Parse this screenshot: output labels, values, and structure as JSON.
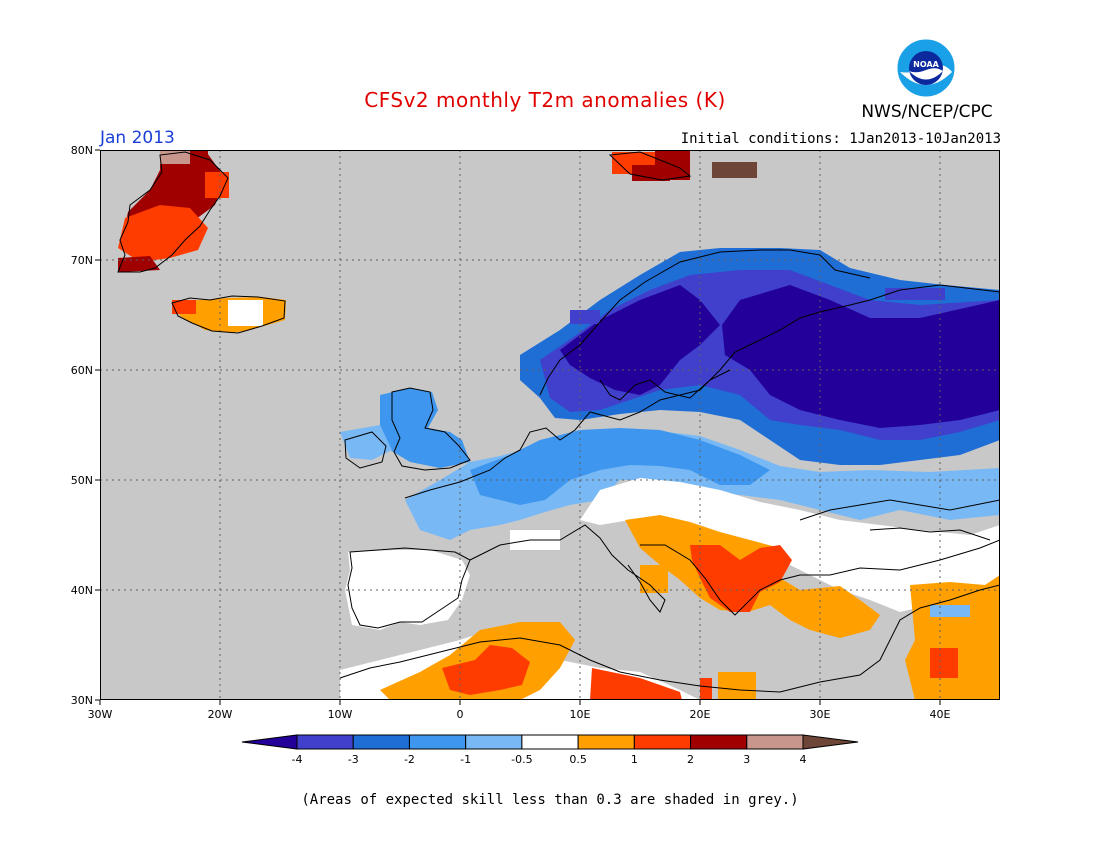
{
  "header": {
    "title": "CFSv2 monthly T2m anomalies (K)",
    "organization": "NWS/NCEP/CPC",
    "logo_text": "NOAA",
    "month": "Jan 2013",
    "initial_conditions": "Initial conditions: 1Jan2013-10Jan2013"
  },
  "map": {
    "projection": "lat-lon",
    "lon_range": [
      -30,
      45
    ],
    "lat_range": [
      30,
      80
    ],
    "lat_ticks": [
      "80N",
      "70N",
      "60N",
      "50N",
      "40N",
      "30N"
    ],
    "lon_ticks": [
      "30W",
      "20W",
      "10W",
      "0",
      "10E",
      "20E",
      "30E",
      "40E"
    ],
    "background_color": "#c8c8c8",
    "regions": [
      {
        "label": "Greenland",
        "category": "+2 to +3",
        "color": "#a00000"
      },
      {
        "label": "Iceland",
        "category": "+0.5 to +1",
        "color": "#ff9f00"
      },
      {
        "label": "Scandinavia / NW Russia",
        "category": "-3 to -4",
        "color": "#2a00a8"
      },
      {
        "label": "Central Europe",
        "category": "-1 to -2",
        "color": "#3e96ee"
      },
      {
        "label": "Balkans",
        "category": "+1 to +2",
        "color": "#ff3c00"
      },
      {
        "label": "North Africa",
        "category": "+0.5 to +1",
        "color": "#ff9f00"
      }
    ]
  },
  "colorbar": {
    "labels": [
      "-4",
      "-3",
      "-2",
      "-1",
      "-0.5",
      "0.5",
      "1",
      "2",
      "3",
      "4"
    ],
    "colors": [
      "#23009a",
      "#4040cc",
      "#1e6ed6",
      "#3e96ee",
      "#78b9f5",
      "#ffffff",
      "#ff9f00",
      "#ff3c00",
      "#a00000",
      "#c8968c",
      "#6e4637"
    ]
  },
  "footnote": "(Areas of expected skill less than 0.3 are shaded in grey.)"
}
